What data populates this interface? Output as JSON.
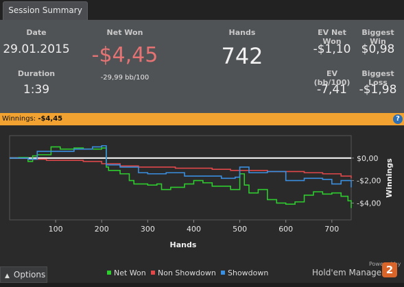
{
  "tab": {
    "label": "Session Summary"
  },
  "stats": {
    "date_label": "Date",
    "date_value": "29.01.2015",
    "duration_label": "Duration",
    "duration_value": "1:39",
    "netwon_label": "Net Won",
    "netwon_value": "-$4,45",
    "netwon_bb": "-29,99 bb/100",
    "hands_label": "Hands",
    "hands_value": "742",
    "ev_netwon_label": "EV Net Won",
    "ev_netwon_value": "-$1,10",
    "biggest_win_label": "Biggest Win",
    "biggest_win_value": "$0,98",
    "ev_bb_label": "EV (bb/100)",
    "ev_bb_value": "-7,41",
    "biggest_loss_label": "Biggest Loss",
    "biggest_loss_value": "-$1,98"
  },
  "winnings_bar": {
    "label": "Winnings:",
    "value": "-$4,45",
    "help_icon": "question-icon"
  },
  "colors": {
    "netwon_red": "#e57373",
    "net_won_line": "#2ecc2e",
    "non_showdown_line": "#e0484a",
    "showdown_line": "#3a8fe0",
    "bar_orange": "#f2a230",
    "brand_orange": "#d9652a"
  },
  "chart_data": {
    "type": "line",
    "xlabel": "Hands",
    "ylabel": "Winnings",
    "xlim": [
      0,
      742
    ],
    "ylim": [
      -5.5,
      2.0
    ],
    "x_ticks": [
      100,
      200,
      300,
      400,
      500,
      600,
      700
    ],
    "y_ticks": [
      0,
      -2,
      -4
    ],
    "y_tick_labels": [
      "$0,00",
      "-$2,00",
      "-$4,00"
    ],
    "legend_position": "bottom",
    "grid": false,
    "series": [
      {
        "name": "Net Won",
        "x": [
          0,
          20,
          40,
          50,
          60,
          70,
          80,
          90,
          110,
          140,
          160,
          200,
          210,
          215,
          240,
          260,
          270,
          300,
          320,
          330,
          350,
          380,
          400,
          420,
          440,
          460,
          480,
          495,
          500,
          510,
          520,
          540,
          560,
          580,
          600,
          620,
          640,
          660,
          680,
          700,
          720,
          735,
          742
        ],
        "y": [
          0,
          0.05,
          -0.3,
          0.2,
          0.3,
          0.3,
          0.3,
          1.0,
          0.8,
          0.9,
          0.8,
          0.9,
          -0.8,
          -1.1,
          -1.4,
          -2.0,
          -2.3,
          -2.4,
          -2.3,
          -2.8,
          -2.6,
          -2.3,
          -2.0,
          -2.2,
          -2.5,
          -2.5,
          -2.8,
          -2.8,
          -1.4,
          -2.4,
          -3.1,
          -2.8,
          -3.7,
          -4.0,
          -4.1,
          -3.9,
          -3.3,
          -3.0,
          -3.2,
          -3.1,
          -3.4,
          -3.8,
          -4.45
        ]
      },
      {
        "name": "Non Showdown",
        "x": [
          0,
          40,
          80,
          120,
          160,
          200,
          240,
          280,
          320,
          360,
          400,
          440,
          480,
          520,
          560,
          600,
          640,
          680,
          720,
          742
        ],
        "y": [
          0,
          -0.1,
          -0.2,
          -0.2,
          -0.3,
          -0.5,
          -0.7,
          -0.8,
          -0.8,
          -0.9,
          -0.9,
          -1.0,
          -1.1,
          -1.1,
          -1.2,
          -1.2,
          -1.3,
          -1.4,
          -1.6,
          -1.8
        ]
      },
      {
        "name": "Showdown",
        "x": [
          0,
          40,
          60,
          100,
          140,
          180,
          200,
          210,
          240,
          280,
          300,
          340,
          380,
          420,
          460,
          490,
          500,
          520,
          560,
          600,
          640,
          680,
          700,
          720,
          742
        ],
        "y": [
          0,
          -0.1,
          0.6,
          0.6,
          0.8,
          1.0,
          1.1,
          -0.6,
          -0.8,
          -1.3,
          -1.4,
          -1.3,
          -1.6,
          -1.6,
          -1.8,
          -1.7,
          -0.8,
          -1.3,
          -1.2,
          -2.0,
          -1.8,
          -1.9,
          -2.3,
          -2.0,
          -2.6
        ]
      }
    ]
  },
  "footer": {
    "options_label": "Options",
    "options_icon": "chevron-up-icon",
    "powered_by": "Powered by",
    "brand_name": "Hold'em Manager",
    "brand_logo_text": "2"
  }
}
